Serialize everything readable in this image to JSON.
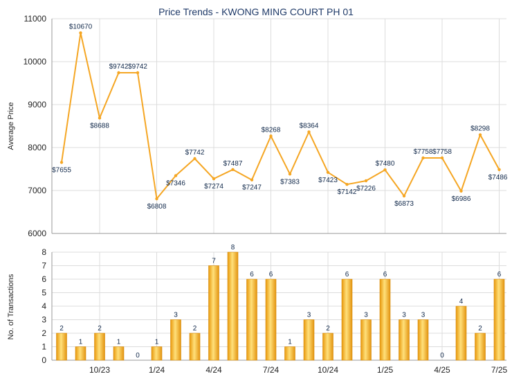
{
  "chart_data": [
    {
      "type": "line",
      "title": "Price Trends - KWONG MING COURT PH 01",
      "ylabel": "Average Price",
      "ylim": [
        6000,
        11000
      ],
      "yticks": [
        6000,
        7000,
        8000,
        9000,
        10000,
        11000
      ],
      "grid": true,
      "color": "#f5a623",
      "points": [
        {
          "i": 0,
          "value": 7655,
          "label": "$7655"
        },
        {
          "i": 1,
          "value": 10670,
          "label": "$10670"
        },
        {
          "i": 2,
          "value": 8688,
          "label": "$8688"
        },
        {
          "i": 3,
          "value": 9742,
          "label": "$9742"
        },
        {
          "i": 4,
          "value": 9742,
          "label": "$9742"
        },
        {
          "i": 5,
          "value": 6808,
          "label": "$6808"
        },
        {
          "i": 6,
          "value": 7346,
          "label": "$7346"
        },
        {
          "i": 7,
          "value": 7742,
          "label": "$7742"
        },
        {
          "i": 8,
          "value": 7274,
          "label": "$7274"
        },
        {
          "i": 9,
          "value": 7487,
          "label": "$7487"
        },
        {
          "i": 10,
          "value": 7247,
          "label": "$7247"
        },
        {
          "i": 11,
          "value": 8268,
          "label": "$8268"
        },
        {
          "i": 12,
          "value": 7383,
          "label": "$7383"
        },
        {
          "i": 13,
          "value": 8364,
          "label": "$8364"
        },
        {
          "i": 14,
          "value": 7423,
          "label": "$7423"
        },
        {
          "i": 15,
          "value": 7142,
          "label": "$7142"
        },
        {
          "i": 16,
          "value": 7226,
          "label": "$7226"
        },
        {
          "i": 17,
          "value": 7480,
          "label": "$7480"
        },
        {
          "i": 18,
          "value": 6873,
          "label": "$6873"
        },
        {
          "i": 19,
          "value": 7758,
          "label": "$7758"
        },
        {
          "i": 20,
          "value": 7758,
          "label": "$7758"
        },
        {
          "i": 21,
          "value": 6986,
          "label": "$6986"
        },
        {
          "i": 22,
          "value": 8298,
          "label": "$8298"
        },
        {
          "i": 23,
          "value": 7486,
          "label": "$7486"
        }
      ]
    },
    {
      "type": "bar",
      "ylabel": "No. of Transactions",
      "ylim": [
        0,
        8
      ],
      "yticks": [
        0,
        1,
        2,
        3,
        4,
        5,
        6,
        7,
        8
      ],
      "grid": true,
      "color": "#f5b41e",
      "values": [
        2,
        1,
        2,
        1,
        0,
        1,
        3,
        2,
        7,
        8,
        6,
        6,
        1,
        3,
        2,
        6,
        3,
        6,
        3,
        3,
        0,
        4,
        2,
        6
      ],
      "xticks": [
        {
          "pos": 2,
          "label": "10/23"
        },
        {
          "pos": 5,
          "label": "1/24"
        },
        {
          "pos": 8,
          "label": "4/24"
        },
        {
          "pos": 11,
          "label": "7/24"
        },
        {
          "pos": 14,
          "label": "10/24"
        },
        {
          "pos": 17,
          "label": "1/25"
        },
        {
          "pos": 20,
          "label": "4/25"
        },
        {
          "pos": 23,
          "label": "7/25"
        }
      ]
    }
  ]
}
